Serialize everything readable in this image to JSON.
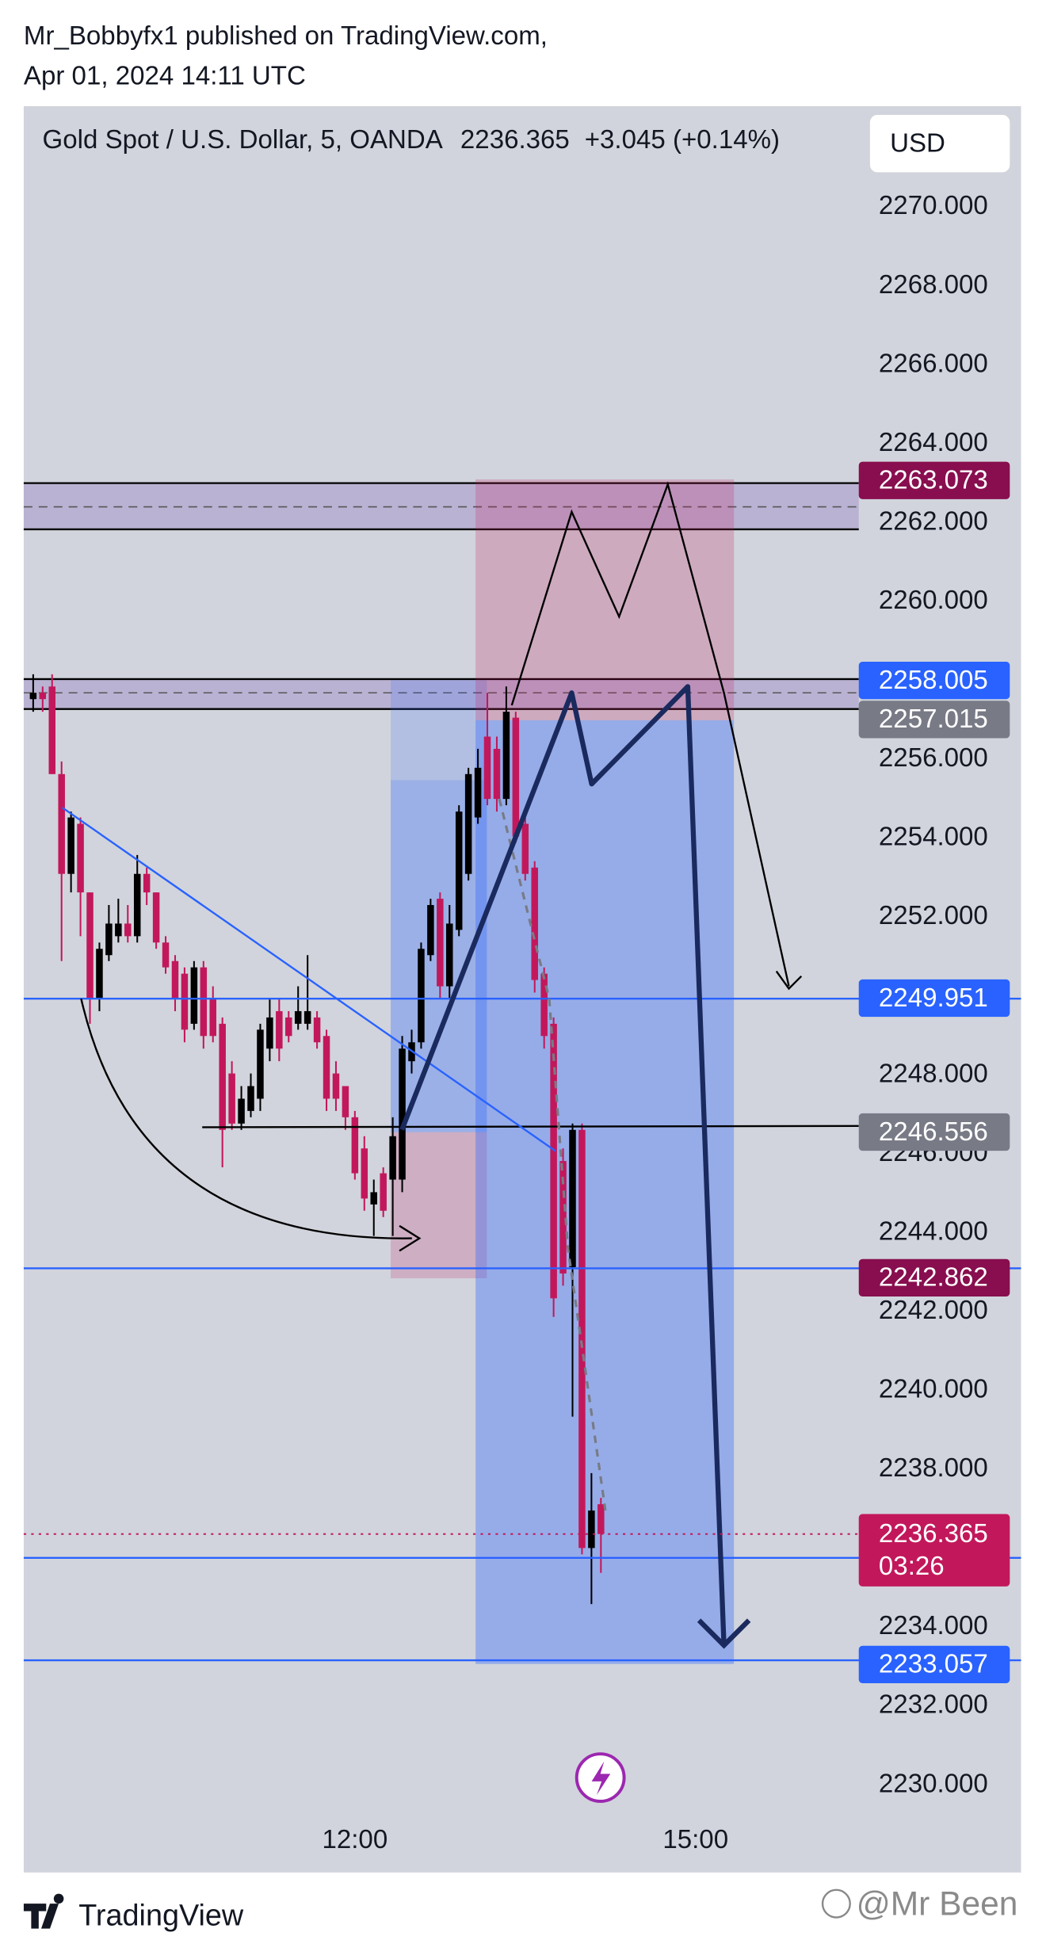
{
  "attribution": {
    "publisher": "Mr_Bobbyfx1 published on TradingView.com,",
    "date": "Apr 01, 2024 14:11 UTC"
  },
  "chart_data": {
    "type": "candlestick",
    "title": "Gold Spot / U.S. Dollar, 5, OANDA",
    "last_price_text": "2236.365",
    "change_text": "+3.045 (+0.14%)",
    "currency": "USD",
    "x": [
      550,
      555,
      560,
      565,
      570,
      575,
      580,
      585,
      590,
      595,
      600,
      605,
      610,
      615,
      620,
      625,
      630,
      635,
      640,
      645,
      650,
      655,
      660,
      665,
      670,
      675,
      680,
      685,
      690,
      695,
      700,
      705,
      710,
      715,
      720,
      725,
      730,
      735,
      740,
      745,
      750,
      755,
      760,
      765,
      770,
      775,
      780,
      785,
      790,
      795,
      800,
      805,
      810,
      815,
      820,
      825,
      830,
      835,
      840,
      845,
      850
    ],
    "open": [
      2257.53,
      2257.69,
      2257.85,
      2255.63,
      2253.1,
      2254.37,
      2252.63,
      2249.94,
      2251.04,
      2251.52,
      2251.84,
      2251.52,
      2253.1,
      2252.63,
      2251.36,
      2250.89,
      2250.57,
      2249.3,
      2250.73,
      2249.94,
      2249.3,
      2248.04,
      2246.77,
      2247.09,
      2247.4,
      2248.67,
      2249.62,
      2249.46,
      2249.3,
      2249.3,
      2249.46,
      2248.99,
      2248.04,
      2247.72,
      2246.93,
      2246.14,
      2244.72,
      2245.51,
      2245.35,
      2245.35,
      2248.35,
      2248.83,
      2251.04,
      2252.47,
      2250.25,
      2251.68,
      2253.1,
      2254.53,
      2256.58,
      2256.27,
      2255.0,
      2257.06,
      2254.37,
      2253.26,
      2250.57,
      2249.3,
      2245.82,
      2243.13,
      2246.61,
      2236.01,
      2237.12
    ],
    "high": [
      2258.16,
      2257.85,
      2258.16,
      2255.95,
      2254.68,
      2254.53,
      2252.63,
      2251.36,
      2252.31,
      2252.47,
      2252.31,
      2253.58,
      2253.26,
      2252.63,
      2251.52,
      2251.04,
      2250.73,
      2250.89,
      2250.89,
      2250.25,
      2249.46,
      2248.35,
      2247.72,
      2248.04,
      2249.3,
      2249.94,
      2249.94,
      2249.62,
      2250.25,
      2251.04,
      2249.62,
      2249.15,
      2248.35,
      2247.72,
      2247.09,
      2246.45,
      2245.35,
      2245.66,
      2246.93,
      2248.99,
      2249.15,
      2251.36,
      2252.47,
      2252.63,
      2252.31,
      2254.84,
      2255.79,
      2256.27,
      2257.69,
      2256.58,
      2257.85,
      2257.21,
      2254.53,
      2253.42,
      2250.73,
      2249.46,
      2246.14,
      2246.77,
      2246.77,
      2237.91,
      2237.28
    ],
    "low": [
      2257.21,
      2257.21,
      2255.63,
      2250.89,
      2252.63,
      2251.52,
      2249.3,
      2249.62,
      2250.89,
      2251.36,
      2251.36,
      2251.36,
      2252.31,
      2251.2,
      2250.57,
      2249.62,
      2248.83,
      2249.15,
      2248.67,
      2248.83,
      2245.66,
      2246.61,
      2246.61,
      2246.93,
      2247.09,
      2248.35,
      2248.35,
      2248.83,
      2249.15,
      2249.15,
      2248.67,
      2247.09,
      2247.09,
      2246.61,
      2245.35,
      2244.56,
      2243.92,
      2244.4,
      2243.92,
      2245.03,
      2248.04,
      2248.67,
      2250.89,
      2249.94,
      2249.94,
      2251.52,
      2252.93,
      2254.37,
      2254.84,
      2254.68,
      2254.84,
      2253.89,
      2252.93,
      2250.09,
      2248.67,
      2241.87,
      2242.66,
      2239.34,
      2235.85,
      2234.59,
      2235.38
    ],
    "close": [
      2257.69,
      2257.53,
      2255.63,
      2253.1,
      2254.53,
      2252.63,
      2249.94,
      2251.2,
      2251.84,
      2251.84,
      2251.52,
      2253.1,
      2252.63,
      2251.36,
      2250.73,
      2249.94,
      2249.15,
      2250.73,
      2248.99,
      2248.99,
      2246.61,
      2246.77,
      2247.4,
      2247.72,
      2249.15,
      2249.46,
      2248.67,
      2248.99,
      2249.62,
      2249.62,
      2248.83,
      2247.4,
      2247.4,
      2246.93,
      2245.51,
      2244.87,
      2245.03,
      2244.56,
      2246.45,
      2248.67,
      2248.83,
      2251.2,
      2252.31,
      2250.25,
      2251.84,
      2254.68,
      2255.63,
      2255.79,
      2255.0,
      2255.0,
      2257.21,
      2254.05,
      2253.1,
      2250.41,
      2248.99,
      2242.34,
      2242.97,
      2246.61,
      2236.01,
      2236.96,
      2236.365
    ],
    "up_color": "#000000",
    "down_color": "#c2185b",
    "xlim": [
      545,
      1072
    ],
    "xticks": [
      {
        "value": 720,
        "label": "12:00"
      },
      {
        "value": 900,
        "label": "15:00"
      }
    ],
    "ylim": [
      2227.785,
      2272.563
    ],
    "yticks": [
      {
        "value": 2270,
        "label": "2270.000"
      },
      {
        "value": 2268,
        "label": "2268.000"
      },
      {
        "value": 2266,
        "label": "2266.000"
      },
      {
        "value": 2264,
        "label": "2264.000"
      },
      {
        "value": 2262,
        "label": "2262.000"
      },
      {
        "value": 2260,
        "label": "2260.000"
      },
      {
        "value": 2256,
        "label": "2256.000"
      },
      {
        "value": 2254,
        "label": "2254.000"
      },
      {
        "value": 2252,
        "label": "2252.000"
      },
      {
        "value": 2248,
        "label": "2248.000"
      },
      {
        "value": 2246,
        "label": "2246.000"
      },
      {
        "value": 2244,
        "label": "2244.000"
      },
      {
        "value": 2242,
        "label": "2242.000"
      },
      {
        "value": 2240,
        "label": "2240.000"
      },
      {
        "value": 2238,
        "label": "2238.000"
      },
      {
        "value": 2234,
        "label": "2234.000"
      },
      {
        "value": 2232,
        "label": "2232.000"
      },
      {
        "value": 2230,
        "label": "2230.000"
      }
    ],
    "price_labels": [
      {
        "value": 2263.073,
        "color": "#880e4f"
      },
      {
        "value": 2258.005,
        "color": "#2962ff"
      },
      {
        "value": 2257.015,
        "color": "#787b86"
      },
      {
        "value": 2249.951,
        "color": "#2962ff"
      },
      {
        "value": 2246.556,
        "color": "#787b86"
      },
      {
        "value": 2242.862,
        "color": "#880e4f"
      },
      {
        "value": 2233.057,
        "color": "#2962ff"
      }
    ],
    "current_price": {
      "value": 2236.365,
      "countdown": "03:26",
      "color": "#c2185b"
    }
  },
  "footer": {
    "brand": "TradingView",
    "watermark": "@Mr Been"
  }
}
